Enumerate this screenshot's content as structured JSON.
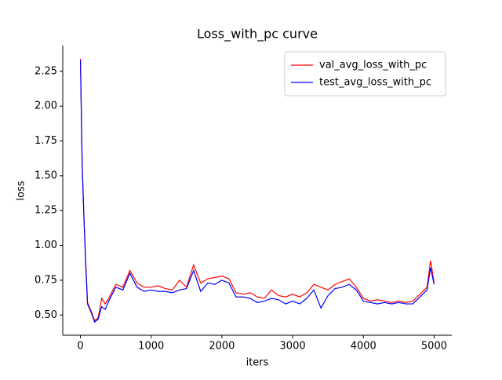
{
  "chart_data": {
    "type": "line",
    "title": "Loss_with_pc curve",
    "x_label": "iters",
    "y_label": "loss",
    "x": [
      0,
      25,
      50,
      75,
      100,
      150,
      200,
      250,
      300,
      350,
      400,
      500,
      600,
      700,
      800,
      900,
      1000,
      1100,
      1200,
      1300,
      1400,
      1500,
      1600,
      1700,
      1800,
      1900,
      2000,
      2100,
      2200,
      2300,
      2400,
      2500,
      2600,
      2700,
      2800,
      2900,
      3000,
      3100,
      3200,
      3300,
      3400,
      3500,
      3600,
      3700,
      3800,
      3900,
      4000,
      4100,
      4200,
      4300,
      4400,
      4500,
      4600,
      4700,
      4800,
      4900,
      4950,
      5000
    ],
    "series": [
      {
        "name": "val_avg_loss_with_pc",
        "color": "#ff0000",
        "values": [
          2.34,
          1.58,
          1.2,
          0.88,
          0.59,
          0.53,
          0.46,
          0.48,
          0.62,
          0.58,
          0.62,
          0.72,
          0.7,
          0.82,
          0.73,
          0.7,
          0.7,
          0.71,
          0.69,
          0.68,
          0.75,
          0.7,
          0.86,
          0.73,
          0.76,
          0.77,
          0.78,
          0.76,
          0.66,
          0.65,
          0.66,
          0.63,
          0.62,
          0.68,
          0.64,
          0.63,
          0.65,
          0.63,
          0.66,
          0.72,
          0.7,
          0.68,
          0.72,
          0.74,
          0.76,
          0.7,
          0.62,
          0.6,
          0.61,
          0.6,
          0.59,
          0.6,
          0.59,
          0.6,
          0.65,
          0.7,
          0.89,
          0.73
        ]
      },
      {
        "name": "test_avg_loss_with_pc",
        "color": "#0000ff",
        "values": [
          2.33,
          1.57,
          1.19,
          0.86,
          0.58,
          0.52,
          0.45,
          0.47,
          0.56,
          0.54,
          0.6,
          0.7,
          0.68,
          0.8,
          0.7,
          0.67,
          0.68,
          0.67,
          0.67,
          0.66,
          0.68,
          0.69,
          0.82,
          0.67,
          0.73,
          0.72,
          0.75,
          0.73,
          0.63,
          0.63,
          0.62,
          0.59,
          0.6,
          0.62,
          0.61,
          0.58,
          0.6,
          0.58,
          0.62,
          0.68,
          0.55,
          0.64,
          0.69,
          0.7,
          0.72,
          0.68,
          0.6,
          0.59,
          0.58,
          0.59,
          0.58,
          0.59,
          0.58,
          0.58,
          0.63,
          0.68,
          0.84,
          0.72
        ]
      }
    ],
    "xlim": [
      -250,
      5250
    ],
    "xticks": [
      0,
      1000,
      2000,
      3000,
      4000,
      5000
    ],
    "ylim": [
      0.355,
      2.435
    ],
    "yticks": [
      {
        "value": 0.5,
        "label": "0.50"
      },
      {
        "value": 0.75,
        "label": "0.75"
      },
      {
        "value": 1.0,
        "label": "1.00"
      },
      {
        "value": 1.25,
        "label": "1.25"
      },
      {
        "value": 1.5,
        "label": "1.50"
      },
      {
        "value": 1.75,
        "label": "1.75"
      },
      {
        "value": 2.0,
        "label": "2.00"
      },
      {
        "value": 2.25,
        "label": "2.25"
      }
    ],
    "legend": "upper right"
  }
}
